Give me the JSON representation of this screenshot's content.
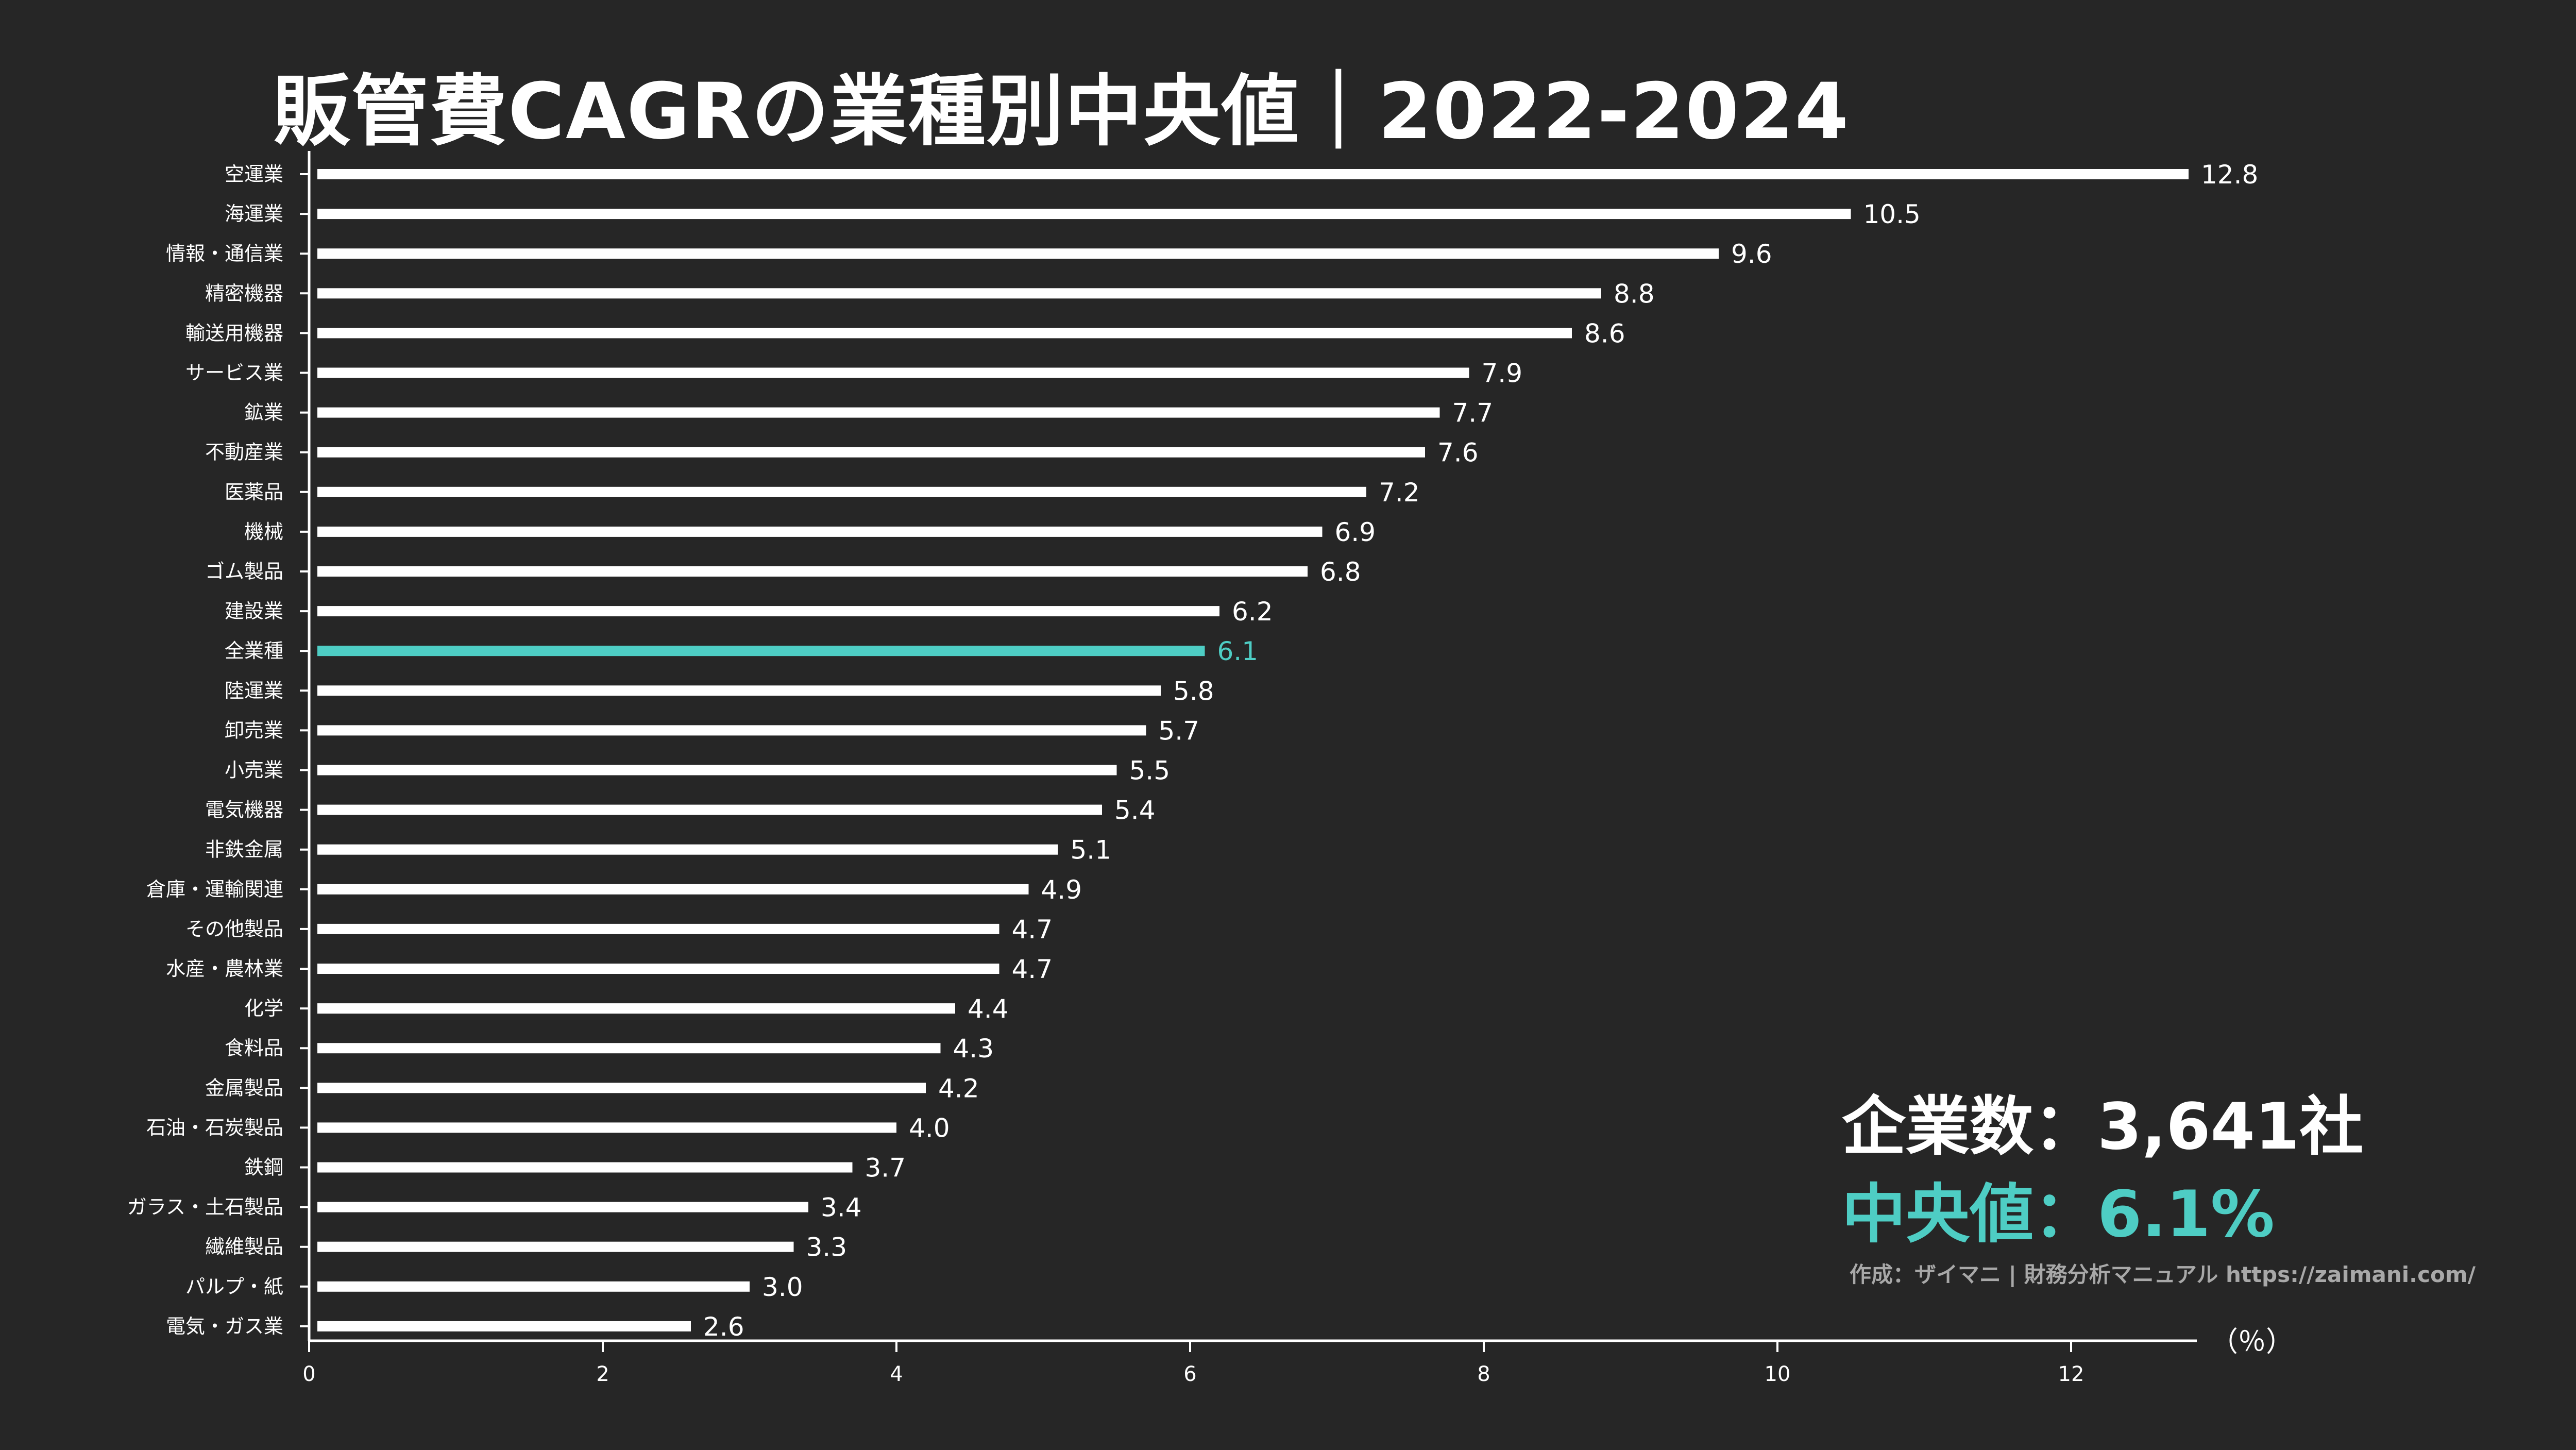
{
  "title": "販管費CAGRの業種別中央値｜2022-2024",
  "colors": {
    "background": "#262626",
    "bar": "#ffffff",
    "highlight": "#4ecdc4",
    "text": "#ffffff",
    "credit": "#a8a8a8"
  },
  "summary": {
    "company_count_label": "企業数：",
    "company_count_value": "3,641社",
    "median_label": "中央値：",
    "median_value": "6.1%"
  },
  "credit": "作成：ザイマニ | 財務分析マニュアル https://zaimani.com/",
  "chart_data": {
    "type": "bar",
    "orientation": "horizontal",
    "title": "販管費CAGRの業種別中央値｜2022-2024",
    "xunit": "（％）",
    "xlim": [
      0,
      12.8
    ],
    "xticks": [
      0,
      2,
      4,
      6,
      8,
      10,
      12
    ],
    "highlight_category": "全業種",
    "categories": [
      "空運業",
      "海運業",
      "情報・通信業",
      "精密機器",
      "輸送用機器",
      "サービス業",
      "鉱業",
      "不動産業",
      "医薬品",
      "機械",
      "ゴム製品",
      "建設業",
      "全業種",
      "陸運業",
      "卸売業",
      "小売業",
      "電気機器",
      "非鉄金属",
      "倉庫・運輸関連",
      "その他製品",
      "水産・農林業",
      "化学",
      "食料品",
      "金属製品",
      "石油・石炭製品",
      "鉄鋼",
      "ガラス・土石製品",
      "繊維製品",
      "パルプ・紙",
      "電気・ガス業"
    ],
    "values": [
      12.8,
      10.5,
      9.6,
      8.8,
      8.6,
      7.9,
      7.7,
      7.6,
      7.2,
      6.9,
      6.8,
      6.2,
      6.1,
      5.8,
      5.7,
      5.5,
      5.4,
      5.1,
      4.9,
      4.7,
      4.7,
      4.4,
      4.3,
      4.2,
      4.0,
      3.7,
      3.4,
      3.3,
      3.0,
      2.6
    ]
  }
}
